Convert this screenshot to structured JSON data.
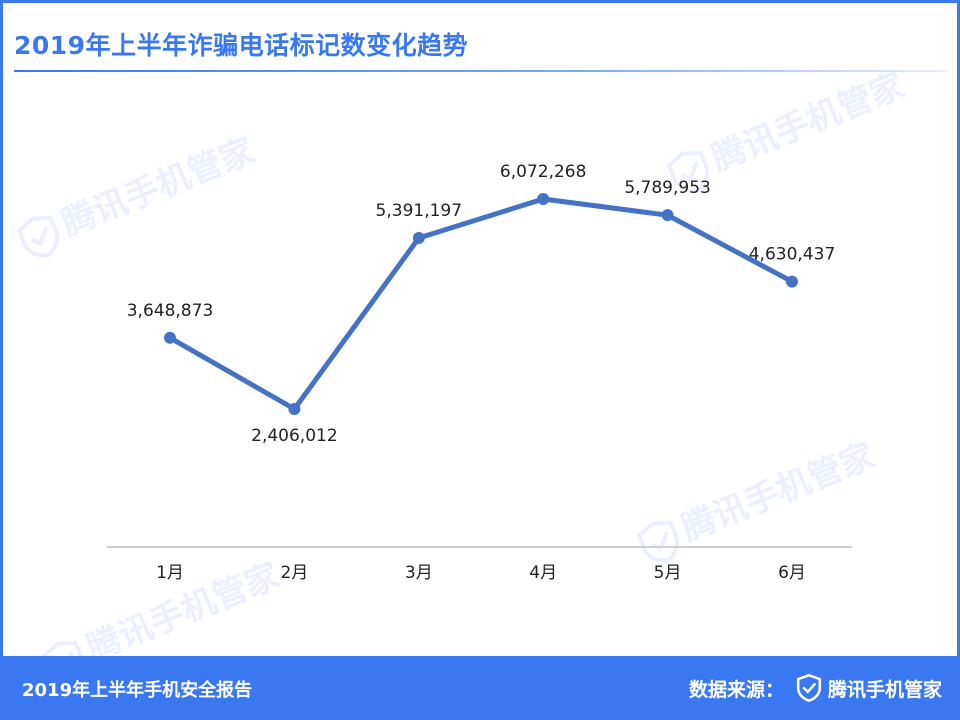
{
  "header": {
    "title": "2019年上半年诈骗电话标记数变化趋势"
  },
  "watermark": {
    "text": "腾讯手机管家",
    "icon": "shield-check-icon"
  },
  "footer": {
    "report_name": "2019年上半年手机安全报告",
    "source_label": "数据来源：",
    "brand_icon": "shield-check-icon",
    "brand_name": "腾讯手机管家"
  },
  "colors": {
    "accent": "#3a78f2",
    "line": "#4472c4",
    "axis": "#d0d0d0",
    "text": "#222222"
  },
  "chart_data": {
    "type": "line",
    "title": "2019年上半年诈骗电话标记数变化趋势",
    "categories": [
      "1月",
      "2月",
      "3月",
      "4月",
      "5月",
      "6月"
    ],
    "values": [
      3648873,
      2406012,
      5391197,
      6072268,
      5789953,
      4630437
    ],
    "data_labels": [
      "3,648,873",
      "2,406,012",
      "5,391,197",
      "6,072,268",
      "5,789,953",
      "4,630,437"
    ],
    "label_position": [
      "above",
      "below",
      "above",
      "above",
      "above",
      "above"
    ],
    "y_axis_visible": false,
    "grid": false,
    "legend": "none"
  }
}
